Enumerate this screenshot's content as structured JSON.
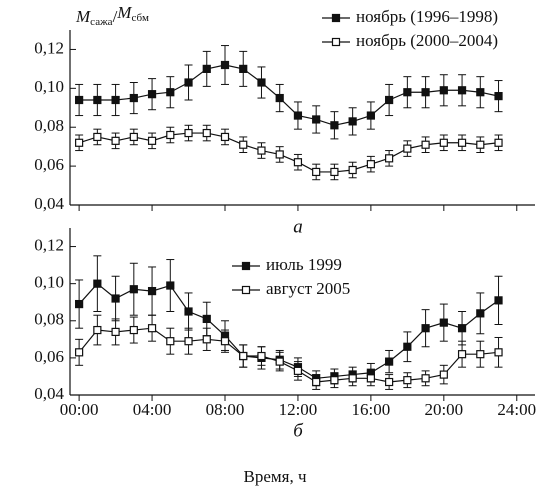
{
  "chart_data": [
    {
      "type": "line",
      "panel_label": "а",
      "y_label": [
        "M",
        "сажа",
        "/",
        "M",
        "сбм"
      ],
      "x": [
        0,
        1,
        2,
        3,
        4,
        5,
        6,
        7,
        8,
        9,
        10,
        11,
        12,
        13,
        14,
        15,
        16,
        17,
        18,
        19,
        20,
        21,
        22,
        23
      ],
      "xlim": [
        -0.5,
        25
      ],
      "xticks": [
        0,
        4,
        8,
        12,
        16,
        20,
        24
      ],
      "ylim": [
        0.04,
        0.13
      ],
      "yticks": [
        {
          "value": 0.04,
          "label": "0,04"
        },
        {
          "value": 0.06,
          "label": "0,06"
        },
        {
          "value": 0.08,
          "label": "0,08"
        },
        {
          "value": 0.1,
          "label": "0,10"
        },
        {
          "value": 0.12,
          "label": "0,12"
        }
      ],
      "legend": "upper right",
      "series": [
        {
          "name": "ноябрь (1996–1998)",
          "color": "#111111",
          "marker": "filled-square",
          "values": [
            0.094,
            0.094,
            0.094,
            0.095,
            0.097,
            0.098,
            0.103,
            0.11,
            0.112,
            0.11,
            0.103,
            0.095,
            0.086,
            0.084,
            0.081,
            0.083,
            0.086,
            0.094,
            0.098,
            0.098,
            0.099,
            0.099,
            0.098,
            0.096
          ],
          "errors": [
            0.008,
            0.008,
            0.008,
            0.008,
            0.008,
            0.008,
            0.009,
            0.009,
            0.01,
            0.009,
            0.008,
            0.007,
            0.007,
            0.007,
            0.007,
            0.007,
            0.007,
            0.008,
            0.008,
            0.008,
            0.008,
            0.008,
            0.008,
            0.008
          ]
        },
        {
          "name": "ноябрь (2000–2004)",
          "color": "#111111",
          "marker": "open-square",
          "values": [
            0.072,
            0.075,
            0.073,
            0.075,
            0.073,
            0.076,
            0.077,
            0.077,
            0.075,
            0.071,
            0.068,
            0.066,
            0.062,
            0.057,
            0.057,
            0.058,
            0.061,
            0.064,
            0.069,
            0.071,
            0.072,
            0.072,
            0.071,
            0.072
          ],
          "errors": [
            0.004,
            0.004,
            0.004,
            0.004,
            0.004,
            0.004,
            0.004,
            0.004,
            0.004,
            0.004,
            0.004,
            0.004,
            0.004,
            0.004,
            0.004,
            0.004,
            0.004,
            0.004,
            0.004,
            0.004,
            0.004,
            0.004,
            0.004,
            0.004
          ]
        }
      ]
    },
    {
      "type": "line",
      "panel_label": "б",
      "x_label": "Время, ч",
      "x": [
        0,
        1,
        2,
        3,
        4,
        5,
        6,
        7,
        8,
        9,
        10,
        11,
        12,
        13,
        14,
        15,
        16,
        17,
        18,
        19,
        20,
        21,
        22,
        23
      ],
      "xlim": [
        -0.5,
        25
      ],
      "xticks": [
        {
          "value": 0,
          "label": "00:00"
        },
        {
          "value": 4,
          "label": "04:00"
        },
        {
          "value": 8,
          "label": "08:00"
        },
        {
          "value": 12,
          "label": "12:00"
        },
        {
          "value": 16,
          "label": "16:00"
        },
        {
          "value": 20,
          "label": "20:00"
        },
        {
          "value": 24,
          "label": "24:00"
        }
      ],
      "ylim": [
        0.04,
        0.13
      ],
      "yticks": [
        {
          "value": 0.04,
          "label": "0,04"
        },
        {
          "value": 0.06,
          "label": "0,06"
        },
        {
          "value": 0.08,
          "label": "0,08"
        },
        {
          "value": 0.1,
          "label": "0,10"
        },
        {
          "value": 0.12,
          "label": "0,12"
        }
      ],
      "legend": "upper center",
      "series": [
        {
          "name": "июль 1999",
          "color": "#111111",
          "marker": "filled-square",
          "values": [
            0.089,
            0.1,
            0.092,
            0.097,
            0.096,
            0.099,
            0.085,
            0.081,
            0.072,
            0.061,
            0.06,
            0.059,
            0.055,
            0.049,
            0.05,
            0.051,
            0.052,
            0.058,
            0.066,
            0.076,
            0.079,
            0.076,
            0.084,
            0.091
          ],
          "errors": [
            0.013,
            0.015,
            0.012,
            0.014,
            0.013,
            0.014,
            0.01,
            0.009,
            0.008,
            0.006,
            0.006,
            0.005,
            0.005,
            0.004,
            0.004,
            0.004,
            0.005,
            0.006,
            0.008,
            0.01,
            0.01,
            0.009,
            0.011,
            0.013
          ]
        },
        {
          "name": "август 2005",
          "color": "#111111",
          "marker": "open-square",
          "values": [
            0.063,
            0.075,
            0.074,
            0.075,
            0.076,
            0.069,
            0.069,
            0.07,
            0.069,
            0.061,
            0.061,
            0.058,
            0.053,
            0.047,
            0.048,
            0.049,
            0.049,
            0.047,
            0.048,
            0.049,
            0.051,
            0.062,
            0.062,
            0.063
          ],
          "errors": [
            0.007,
            0.008,
            0.007,
            0.007,
            0.007,
            0.007,
            0.007,
            0.006,
            0.006,
            0.006,
            0.005,
            0.005,
            0.005,
            0.004,
            0.004,
            0.004,
            0.004,
            0.004,
            0.004,
            0.004,
            0.005,
            0.007,
            0.007,
            0.008
          ]
        }
      ]
    }
  ]
}
